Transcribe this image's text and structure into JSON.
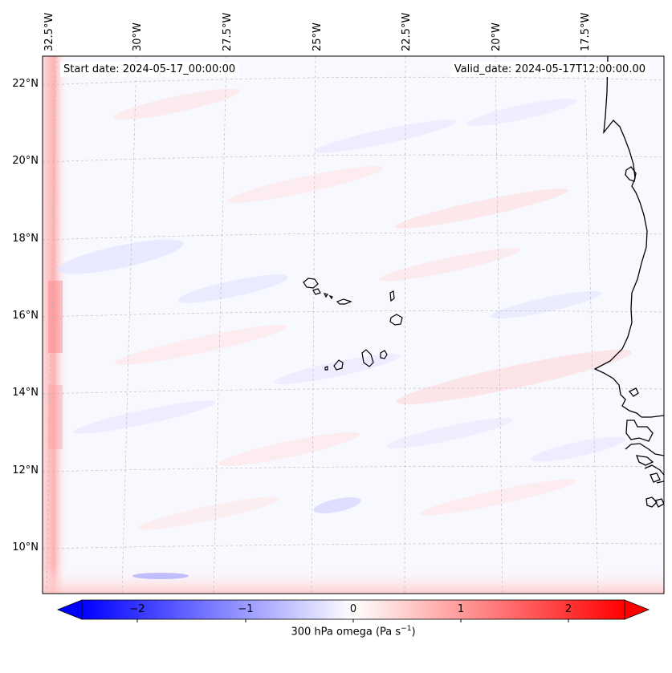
{
  "map": {
    "start_date_text": "Start date: 2024-05-17_00:00:00",
    "valid_date_text": "Valid_date: 2024-05-17T12:00:00.00",
    "projection": "lambert-conformal",
    "extent": {
      "lon_min": -33.0,
      "lon_max": -15.8,
      "lat_min": 8.8,
      "lat_max": 22.8
    },
    "gridlines": "dashed-gray",
    "longitude_labels": [
      "32.5°W",
      "30°W",
      "27.5°W",
      "25°W",
      "22.5°W",
      "20°W",
      "17.5°W"
    ],
    "latitude_labels": [
      "22°N",
      "20°N",
      "18°N",
      "16°N",
      "14°N",
      "12°N",
      "10°N"
    ],
    "features": [
      "Cape Verde islands",
      "West African coastline (Mauritania, Senegal, The Gambia, Guinea-Bissau)"
    ]
  },
  "colorbar": {
    "label_prefix": "300 hPa omega (Pa s",
    "label_exponent": "−1",
    "label_suffix": ")",
    "colormap": "bwr",
    "range": [
      -2.7,
      2.7
    ],
    "extend": "both",
    "tick_labels": [
      "−2",
      "−1",
      "0",
      "1",
      "2"
    ],
    "colors": {
      "min": "#0000ff",
      "mid": "#ffffff",
      "max": "#ff0000"
    }
  }
}
